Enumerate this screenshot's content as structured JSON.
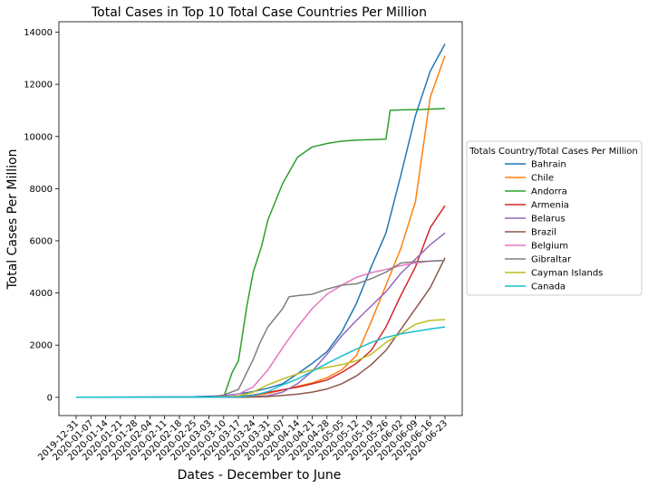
{
  "chart_data": {
    "type": "line",
    "title": "Total Cases in Top 10 Total Case Countries Per Million",
    "xlabel": "Dates - December to June",
    "ylabel": "Total Cases Per Million",
    "ylim": [
      -700,
      14400
    ],
    "x_tick_labels": [
      "2019-12-31",
      "2020-01-07",
      "2020-01-14",
      "2020-01-21",
      "2020-01-28",
      "2020-02-04",
      "2020-02-11",
      "2020-02-18",
      "2020-02-25",
      "2020-03-03",
      "2020-03-10",
      "2020-03-17",
      "2020-03-24",
      "2020-03-31",
      "2020-04-07",
      "2020-04-14",
      "2020-04-21",
      "2020-04-28",
      "2020-05-05",
      "2020-05-12",
      "2020-05-19",
      "2020-05-26",
      "2020-06-02",
      "2020-06-09",
      "2020-06-16",
      "2020-06-23"
    ],
    "y_ticks": [
      0,
      2000,
      4000,
      6000,
      8000,
      10000,
      12000,
      14000
    ],
    "grid": false,
    "legend": {
      "title": "Totals Country/Total Cases Per Million",
      "placement": "right-outside"
    },
    "series": [
      {
        "name": "Bahrain",
        "color": "#1f77b4",
        "points": [
          [
            "2019-12-31",
            0
          ],
          [
            "2020-02-25",
            20
          ],
          [
            "2020-03-10",
            60
          ],
          [
            "2020-03-17",
            130
          ],
          [
            "2020-03-24",
            220
          ],
          [
            "2020-03-31",
            350
          ],
          [
            "2020-04-07",
            520
          ],
          [
            "2020-04-14",
            900
          ],
          [
            "2020-04-21",
            1300
          ],
          [
            "2020-04-28",
            1750
          ],
          [
            "2020-05-05",
            2500
          ],
          [
            "2020-05-12",
            3600
          ],
          [
            "2020-05-19",
            5000
          ],
          [
            "2020-05-26",
            6300
          ],
          [
            "2020-06-02",
            8500
          ],
          [
            "2020-06-09",
            10800
          ],
          [
            "2020-06-16",
            12500
          ],
          [
            "2020-06-23",
            13550
          ]
        ]
      },
      {
        "name": "Chile",
        "color": "#ff7f0e",
        "points": [
          [
            "2019-12-31",
            0
          ],
          [
            "2020-03-10",
            0
          ],
          [
            "2020-03-17",
            20
          ],
          [
            "2020-03-24",
            60
          ],
          [
            "2020-03-31",
            150
          ],
          [
            "2020-04-07",
            280
          ],
          [
            "2020-04-14",
            420
          ],
          [
            "2020-04-21",
            550
          ],
          [
            "2020-04-28",
            750
          ],
          [
            "2020-05-05",
            1050
          ],
          [
            "2020-05-12",
            1600
          ],
          [
            "2020-05-19",
            2900
          ],
          [
            "2020-05-26",
            4300
          ],
          [
            "2020-06-02",
            5700
          ],
          [
            "2020-06-09",
            7500
          ],
          [
            "2020-06-16",
            11500
          ],
          [
            "2020-06-23",
            13100
          ]
        ]
      },
      {
        "name": "Andorra",
        "color": "#2ca02c",
        "points": [
          [
            "2019-12-31",
            0
          ],
          [
            "2020-03-10",
            0
          ],
          [
            "2020-03-14",
            950
          ],
          [
            "2020-03-17",
            1400
          ],
          [
            "2020-03-21",
            3500
          ],
          [
            "2020-03-24",
            4800
          ],
          [
            "2020-03-28",
            5800
          ],
          [
            "2020-03-31",
            6800
          ],
          [
            "2020-04-07",
            8200
          ],
          [
            "2020-04-14",
            9200
          ],
          [
            "2020-04-21",
            9600
          ],
          [
            "2020-04-28",
            9730
          ],
          [
            "2020-05-05",
            9820
          ],
          [
            "2020-05-12",
            9860
          ],
          [
            "2020-05-19",
            9880
          ],
          [
            "2020-05-26",
            9900
          ],
          [
            "2020-05-28",
            11000
          ],
          [
            "2020-06-02",
            11020
          ],
          [
            "2020-06-09",
            11030
          ],
          [
            "2020-06-16",
            11050
          ],
          [
            "2020-06-23",
            11070
          ]
        ]
      },
      {
        "name": "Armenia",
        "color": "#d62728",
        "points": [
          [
            "2019-12-31",
            0
          ],
          [
            "2020-03-03",
            0
          ],
          [
            "2020-03-10",
            5
          ],
          [
            "2020-03-17",
            30
          ],
          [
            "2020-03-24",
            90
          ],
          [
            "2020-03-31",
            190
          ],
          [
            "2020-04-07",
            290
          ],
          [
            "2020-04-14",
            390
          ],
          [
            "2020-04-21",
            520
          ],
          [
            "2020-04-28",
            660
          ],
          [
            "2020-05-05",
            950
          ],
          [
            "2020-05-12",
            1300
          ],
          [
            "2020-05-19",
            1800
          ],
          [
            "2020-05-26",
            2700
          ],
          [
            "2020-06-02",
            3900
          ],
          [
            "2020-06-09",
            5000
          ],
          [
            "2020-06-16",
            6500
          ],
          [
            "2020-06-23",
            7350
          ]
        ]
      },
      {
        "name": "Belarus",
        "color": "#9467bd",
        "points": [
          [
            "2019-12-31",
            0
          ],
          [
            "2020-03-03",
            0
          ],
          [
            "2020-03-10",
            5
          ],
          [
            "2020-03-17",
            10
          ],
          [
            "2020-03-24",
            20
          ],
          [
            "2020-03-31",
            60
          ],
          [
            "2020-04-07",
            200
          ],
          [
            "2020-04-14",
            520
          ],
          [
            "2020-04-21",
            1000
          ],
          [
            "2020-04-28",
            1650
          ],
          [
            "2020-05-05",
            2350
          ],
          [
            "2020-05-12",
            2950
          ],
          [
            "2020-05-19",
            3500
          ],
          [
            "2020-05-26",
            4050
          ],
          [
            "2020-06-02",
            4750
          ],
          [
            "2020-06-09",
            5300
          ],
          [
            "2020-06-16",
            5850
          ],
          [
            "2020-06-23",
            6300
          ]
        ]
      },
      {
        "name": "Brazil",
        "color": "#8c564b",
        "points": [
          [
            "2019-12-31",
            0
          ],
          [
            "2020-03-03",
            0
          ],
          [
            "2020-03-17",
            2
          ],
          [
            "2020-03-24",
            10
          ],
          [
            "2020-03-31",
            30
          ],
          [
            "2020-04-07",
            70
          ],
          [
            "2020-04-14",
            120
          ],
          [
            "2020-04-21",
            200
          ],
          [
            "2020-04-28",
            320
          ],
          [
            "2020-05-05",
            520
          ],
          [
            "2020-05-12",
            820
          ],
          [
            "2020-05-19",
            1250
          ],
          [
            "2020-05-26",
            1800
          ],
          [
            "2020-06-02",
            2600
          ],
          [
            "2020-06-09",
            3400
          ],
          [
            "2020-06-16",
            4200
          ],
          [
            "2020-06-23",
            5350
          ]
        ]
      },
      {
        "name": "Belgium",
        "color": "#e377c2",
        "points": [
          [
            "2019-12-31",
            0
          ],
          [
            "2020-03-03",
            0
          ],
          [
            "2020-03-10",
            25
          ],
          [
            "2020-03-17",
            120
          ],
          [
            "2020-03-24",
            400
          ],
          [
            "2020-03-31",
            1050
          ],
          [
            "2020-04-07",
            1900
          ],
          [
            "2020-04-14",
            2700
          ],
          [
            "2020-04-21",
            3400
          ],
          [
            "2020-04-28",
            3950
          ],
          [
            "2020-05-05",
            4300
          ],
          [
            "2020-05-12",
            4600
          ],
          [
            "2020-05-19",
            4780
          ],
          [
            "2020-05-26",
            4900
          ],
          [
            "2020-06-02",
            5050
          ],
          [
            "2020-06-09",
            5150
          ],
          [
            "2020-06-16",
            5230
          ],
          [
            "2020-06-23",
            5250
          ]
        ]
      },
      {
        "name": "Gibraltar",
        "color": "#7f7f7f",
        "points": [
          [
            "2019-12-31",
            0
          ],
          [
            "2020-03-03",
            0
          ],
          [
            "2020-03-10",
            90
          ],
          [
            "2020-03-17",
            300
          ],
          [
            "2020-03-24",
            1450
          ],
          [
            "2020-03-27",
            2050
          ],
          [
            "2020-03-31",
            2700
          ],
          [
            "2020-04-07",
            3400
          ],
          [
            "2020-04-10",
            3850
          ],
          [
            "2020-04-14",
            3900
          ],
          [
            "2020-04-21",
            3950
          ],
          [
            "2020-04-28",
            4150
          ],
          [
            "2020-05-05",
            4300
          ],
          [
            "2020-05-12",
            4350
          ],
          [
            "2020-05-19",
            4550
          ],
          [
            "2020-05-26",
            4800
          ],
          [
            "2020-06-02",
            5150
          ],
          [
            "2020-06-09",
            5200
          ],
          [
            "2020-06-16",
            5220
          ],
          [
            "2020-06-23",
            5250
          ]
        ]
      },
      {
        "name": "Cayman Islands",
        "color": "#bcbd22",
        "points": [
          [
            "2019-12-31",
            0
          ],
          [
            "2020-03-10",
            0
          ],
          [
            "2020-03-17",
            50
          ],
          [
            "2020-03-24",
            200
          ],
          [
            "2020-03-31",
            480
          ],
          [
            "2020-04-07",
            700
          ],
          [
            "2020-04-14",
            900
          ],
          [
            "2020-04-21",
            1050
          ],
          [
            "2020-04-28",
            1150
          ],
          [
            "2020-05-05",
            1250
          ],
          [
            "2020-05-12",
            1400
          ],
          [
            "2020-05-19",
            1650
          ],
          [
            "2020-05-26",
            2100
          ],
          [
            "2020-06-02",
            2450
          ],
          [
            "2020-06-09",
            2800
          ],
          [
            "2020-06-16",
            2950
          ],
          [
            "2020-06-23",
            2980
          ]
        ]
      },
      {
        "name": "Canada",
        "color": "#17becf",
        "points": [
          [
            "2019-12-31",
            0
          ],
          [
            "2020-03-03",
            0
          ],
          [
            "2020-03-10",
            3
          ],
          [
            "2020-03-17",
            15
          ],
          [
            "2020-03-24",
            70
          ],
          [
            "2020-03-31",
            220
          ],
          [
            "2020-04-07",
            480
          ],
          [
            "2020-04-14",
            700
          ],
          [
            "2020-04-21",
            1000
          ],
          [
            "2020-04-28",
            1300
          ],
          [
            "2020-05-05",
            1580
          ],
          [
            "2020-05-12",
            1850
          ],
          [
            "2020-05-19",
            2100
          ],
          [
            "2020-05-26",
            2300
          ],
          [
            "2020-06-02",
            2430
          ],
          [
            "2020-06-09",
            2530
          ],
          [
            "2020-06-16",
            2620
          ],
          [
            "2020-06-23",
            2700
          ]
        ]
      }
    ]
  }
}
